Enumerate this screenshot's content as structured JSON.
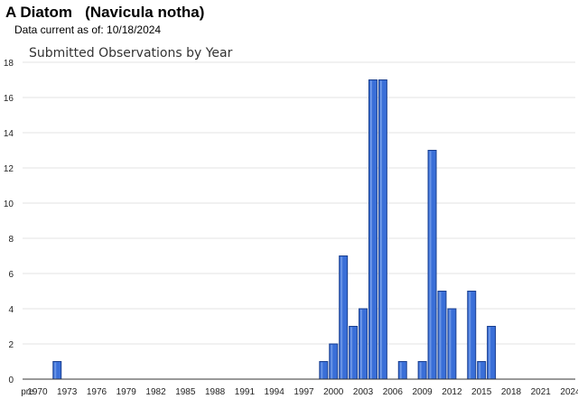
{
  "header": {
    "title": "A Diatom   (Navicula notha)",
    "data_current": "Data current as of: 10/18/2024"
  },
  "chart_data": {
    "type": "bar",
    "title": "Submitted Observations by Year",
    "xlabel": "",
    "ylabel": "",
    "ylim": [
      0,
      18
    ],
    "y_ticks": [
      0,
      2,
      4,
      6,
      8,
      10,
      12,
      14,
      16,
      18
    ],
    "x_tick_labels": [
      "pre",
      "1970",
      "1973",
      "1976",
      "1979",
      "1982",
      "1985",
      "1988",
      "1991",
      "1994",
      "1997",
      "2000",
      "2003",
      "2006",
      "2009",
      "2012",
      "2015",
      "2018",
      "2021",
      "2024"
    ],
    "categories": [
      "pre",
      "1970",
      "1971",
      "1972",
      "1973",
      "1974",
      "1975",
      "1976",
      "1977",
      "1978",
      "1979",
      "1980",
      "1981",
      "1982",
      "1983",
      "1984",
      "1985",
      "1986",
      "1987",
      "1988",
      "1989",
      "1990",
      "1991",
      "1992",
      "1993",
      "1994",
      "1995",
      "1996",
      "1997",
      "1998",
      "1999",
      "2000",
      "2001",
      "2002",
      "2003",
      "2004",
      "2005",
      "2006",
      "2007",
      "2008",
      "2009",
      "2010",
      "2011",
      "2012",
      "2013",
      "2014",
      "2015",
      "2016",
      "2017",
      "2018",
      "2019",
      "2020",
      "2021",
      "2022",
      "2023",
      "2024"
    ],
    "values": [
      0,
      0,
      0,
      1,
      0,
      0,
      0,
      0,
      0,
      0,
      0,
      0,
      0,
      0,
      0,
      0,
      0,
      0,
      0,
      0,
      0,
      0,
      0,
      0,
      0,
      0,
      0,
      0,
      0,
      0,
      1,
      2,
      7,
      3,
      4,
      17,
      17,
      0,
      1,
      0,
      1,
      13,
      5,
      4,
      0,
      5,
      1,
      3,
      0,
      0,
      0,
      0,
      0,
      0,
      0,
      0
    ],
    "bar_color": "#3a6fd8",
    "bar_edge_color": "#1a3f8f",
    "grid": true
  }
}
